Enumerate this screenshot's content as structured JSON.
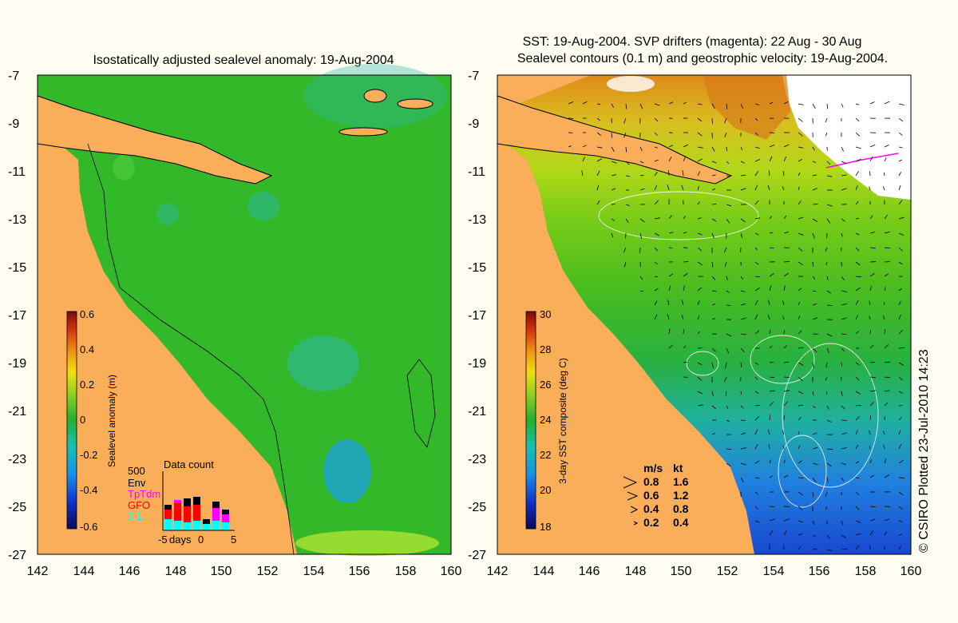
{
  "left_panel": {
    "title": "Isostatically adjusted sealevel anomaly: 19-Aug-2004",
    "colorbar": {
      "label": "Sealevel anomaly (m)",
      "ticks": [
        "0.6",
        "0.4",
        "0.2",
        "0",
        "-0.2",
        "-0.4",
        "-0.6"
      ],
      "range": [
        -0.6,
        0.6
      ]
    },
    "data_count": {
      "title": "Data count",
      "max_label": "500",
      "missions": [
        {
          "name": "Env",
          "color": "#000000"
        },
        {
          "name": "TpTdm",
          "color": "#ff00ff"
        },
        {
          "name": "GFO",
          "color": "#ff0000"
        },
        {
          "name": "J-1",
          "color": "#00ffff"
        }
      ],
      "axis_labels": [
        "-5",
        "days",
        "0",
        "5"
      ]
    }
  },
  "right_panel": {
    "title_line1": "SST: 19-Aug-2004. SVP drifters (magenta): 22 Aug - 30 Aug",
    "title_line2": "Sealevel contours (0.1 m) and geostrophic velocity: 19-Aug-2004.",
    "colorbar": {
      "label": "3-day SST composite (deg C)",
      "ticks": [
        "30",
        "28",
        "26",
        "24",
        "22",
        "20",
        "18"
      ],
      "range": [
        18,
        30
      ]
    },
    "velocity_legend": {
      "header_ms": "m/s",
      "header_kt": "kt",
      "rows": [
        {
          "ms": "0.8",
          "kt": "1.6"
        },
        {
          "ms": "0.6",
          "kt": "1.2"
        },
        {
          "ms": "0.4",
          "kt": "0.8"
        },
        {
          "ms": "0.2",
          "kt": "0.4"
        }
      ]
    }
  },
  "axes": {
    "lat_ticks": [
      "-7",
      "-9",
      "-11",
      "-13",
      "-15",
      "-17",
      "-19",
      "-21",
      "-23",
      "-25",
      "-27"
    ],
    "lon_ticks": [
      "142",
      "144",
      "146",
      "148",
      "150",
      "152",
      "154",
      "156",
      "158",
      "160"
    ],
    "lat_range": [
      -27,
      -7
    ],
    "lon_range": [
      142,
      160
    ]
  },
  "credit": "© CSIRO Plotted 23-Jul-2010 14:23",
  "colors": {
    "land": "#fbae5a",
    "background": "#fffdf1",
    "sea_level_green": "#33b82a"
  }
}
